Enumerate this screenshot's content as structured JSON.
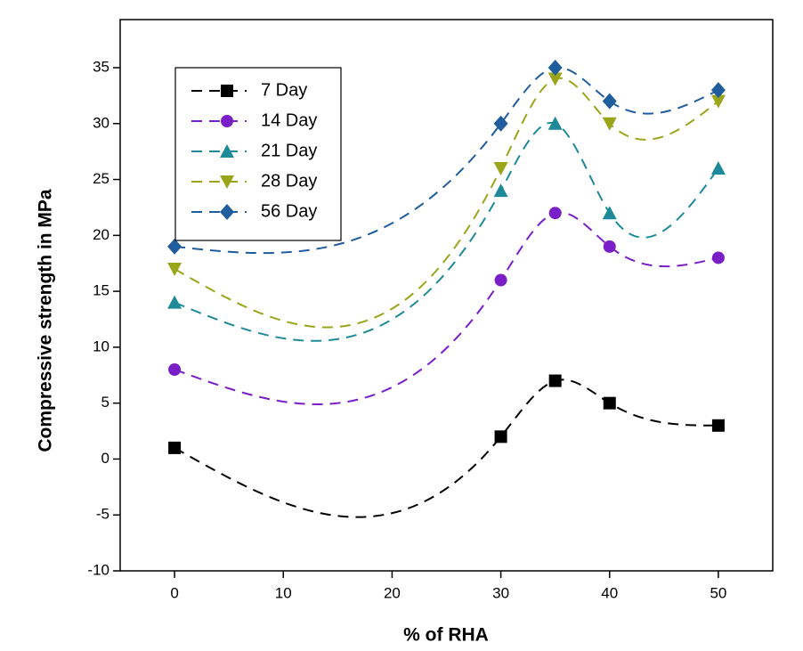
{
  "chart_data": {
    "type": "line",
    "x_label": "% of RHA",
    "y_label": "Compressive strength in MPa",
    "x": [
      0,
      30,
      35,
      40,
      50
    ],
    "series": [
      {
        "name": "7 Day",
        "color": "#000000",
        "marker": "square",
        "values": [
          1,
          2,
          7,
          5,
          3
        ]
      },
      {
        "name": "14 Day",
        "color": "#7a1fc8",
        "marker": "circle",
        "values": [
          8,
          16,
          22,
          19,
          18
        ]
      },
      {
        "name": "21 Day",
        "color": "#1d8a99",
        "marker": "triangle-up",
        "values": [
          14,
          24,
          30,
          22,
          26
        ]
      },
      {
        "name": "28 Day",
        "color": "#9aa51a",
        "marker": "triangle-down",
        "values": [
          17,
          26,
          34,
          30,
          32
        ]
      },
      {
        "name": "56 Day",
        "color": "#1f5d9c",
        "marker": "diamond",
        "values": [
          19,
          30,
          35,
          32,
          33
        ]
      }
    ],
    "xlim": [
      -5,
      55
    ],
    "ylim": [
      -10,
      39.3
    ],
    "xticks": [
      0,
      10,
      20,
      30,
      40,
      50
    ],
    "yticks": [
      -10,
      -5,
      0,
      5,
      10,
      15,
      20,
      25,
      30,
      35
    ],
    "legend": "upper left",
    "smooth": true
  }
}
